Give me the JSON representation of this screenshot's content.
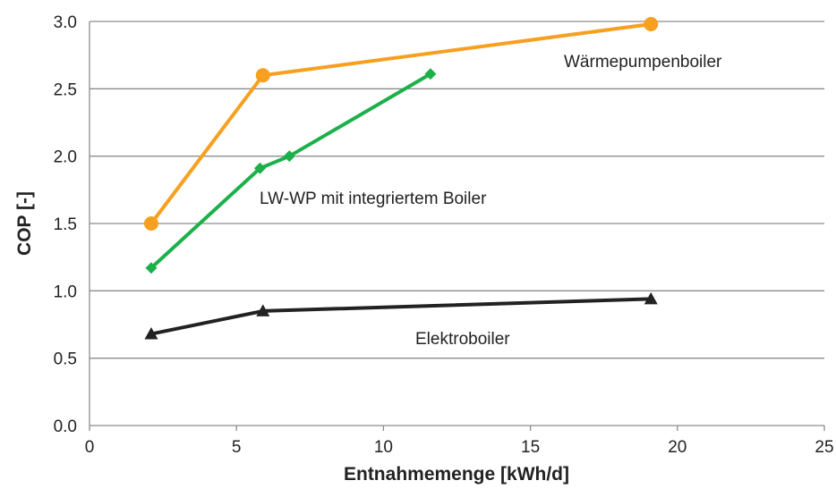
{
  "chart_data": {
    "type": "line",
    "title": "",
    "xlabel": "Entnahmemenge  [kWh/d]",
    "ylabel": "COP [-]",
    "xlim": [
      0,
      25
    ],
    "ylim": [
      0,
      3.0
    ],
    "xticks": [
      0,
      5,
      10,
      15,
      20,
      25
    ],
    "xtick_labels": [
      "0",
      "5",
      "10",
      "15",
      "20",
      "25"
    ],
    "yticks": [
      0,
      0.5,
      1.0,
      1.5,
      2.0,
      2.5,
      3.0
    ],
    "ytick_labels": [
      "0.0",
      "0.5",
      "1.0",
      "1.5",
      "2.0",
      "2.5",
      "3.0"
    ],
    "grid": "horizontal",
    "legend": "none",
    "series": [
      {
        "name": "Wärmepumpenboiler",
        "color": "#f7a020",
        "marker": "circle",
        "x": [
          2.1,
          5.9,
          19.1
        ],
        "y": [
          1.5,
          2.6,
          2.98
        ]
      },
      {
        "name": "LW-WP mit integriertem Boiler",
        "color": "#1db04a",
        "marker": "diamond",
        "x": [
          2.1,
          5.8,
          6.8,
          11.6
        ],
        "y": [
          1.17,
          1.91,
          2.0,
          2.61
        ]
      },
      {
        "name": "Elektroboiler",
        "color": "#222222",
        "marker": "triangle",
        "x": [
          2.1,
          5.9,
          19.1
        ],
        "y": [
          0.68,
          0.85,
          0.94
        ]
      }
    ],
    "annotations": [
      {
        "series": 0,
        "text": "Wärmepumpenboiler"
      },
      {
        "series": 1,
        "text": "LW-WP mit integriertem Boiler"
      },
      {
        "series": 2,
        "text": "Elektroboiler"
      }
    ]
  }
}
